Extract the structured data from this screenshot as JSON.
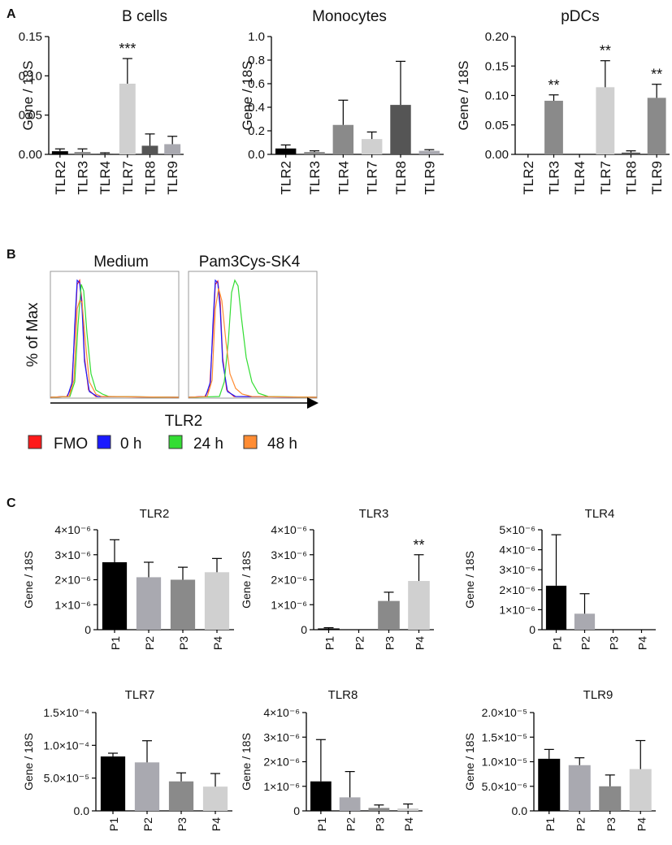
{
  "panel_labels": {
    "a": "A",
    "b": "B",
    "c": "C"
  },
  "colors": {
    "black": "#000000",
    "dark": "#555555",
    "mid": "#8a8a8a",
    "light_gray": "#a9a9b0",
    "pale": "#d0d0d0",
    "fmo": "#ff1a1a",
    "h0": "#1a1aff",
    "h24": "#33dd33",
    "h48": "#ff8c33"
  },
  "legend": [
    {
      "label": "FMO",
      "color": "#ff1a1a"
    },
    {
      "label": "0 h",
      "color": "#1a1aff"
    },
    {
      "label": "24 h",
      "color": "#33dd33"
    },
    {
      "label": "48 h",
      "color": "#ff8c33"
    }
  ],
  "flow": {
    "titles": [
      "Medium",
      "Pam3Cys-SK4"
    ],
    "ylabel": "% of Max",
    "xlabel": "TLR2"
  },
  "chart_data": [
    {
      "type": "bar",
      "panel": "A",
      "title": "B cells",
      "ylabel": "Gene / 18S",
      "categories": [
        "TLR2",
        "TLR3",
        "TLR4",
        "TLR7",
        "TLR8",
        "TLR9"
      ],
      "values": [
        0.004,
        0.003,
        0.001,
        0.09,
        0.011,
        0.013
      ],
      "errors": [
        0.003,
        0.004,
        0.001,
        0.032,
        0.015,
        0.01
      ],
      "colors": [
        "#000000",
        "#8a8a8a",
        "#555555",
        "#d0d0d0",
        "#555555",
        "#a9a9b0"
      ],
      "annotations": [
        "",
        "",
        "",
        "***",
        "",
        ""
      ],
      "ylim": [
        0,
        0.15
      ],
      "yticks": [
        0,
        0.05,
        0.1,
        0.15
      ],
      "ytick_labels": [
        "0.00",
        "0.05",
        "0.10",
        "0.15"
      ]
    },
    {
      "type": "bar",
      "panel": "A",
      "title": "Monocytes",
      "ylabel": "Gene / 18S",
      "categories": [
        "TLR2",
        "TLR3",
        "TLR4",
        "TLR7",
        "TLR8",
        "TLR9"
      ],
      "values": [
        0.05,
        0.02,
        0.25,
        0.13,
        0.42,
        0.03
      ],
      "errors": [
        0.03,
        0.01,
        0.21,
        0.06,
        0.37,
        0.01
      ],
      "colors": [
        "#000000",
        "#8a8a8a",
        "#8a8a8a",
        "#d0d0d0",
        "#555555",
        "#a9a9b0"
      ],
      "annotations": [
        "",
        "",
        "",
        "",
        "",
        ""
      ],
      "ylim": [
        0,
        1.0
      ],
      "yticks": [
        0,
        0.2,
        0.4,
        0.6,
        0.8,
        1.0
      ],
      "ytick_labels": [
        "0.0",
        "0.2",
        "0.4",
        "0.6",
        "0.8",
        "1.0"
      ]
    },
    {
      "type": "bar",
      "panel": "A",
      "title": "pDCs",
      "ylabel": "Gene / 18S",
      "categories": [
        "TLR2",
        "TLR3",
        "TLR4",
        "TLR7",
        "TLR8",
        "TLR9"
      ],
      "values": [
        0,
        0.091,
        0,
        0.114,
        0.003,
        0.096
      ],
      "errors": [
        0,
        0.01,
        0,
        0.045,
        0.003,
        0.023
      ],
      "colors": [
        "#000000",
        "#8a8a8a",
        "#555555",
        "#d0d0d0",
        "#555555",
        "#8a8a8a"
      ],
      "annotations": [
        "",
        "**",
        "",
        "**",
        "",
        "**"
      ],
      "ylim": [
        0,
        0.2
      ],
      "yticks": [
        0,
        0.05,
        0.1,
        0.15,
        0.2
      ],
      "ytick_labels": [
        "0.00",
        "0.05",
        "0.10",
        "0.15",
        "0.20"
      ]
    },
    {
      "type": "bar",
      "panel": "C",
      "title": "TLR2",
      "ylabel": "Gene / 18S",
      "categories": [
        "P1",
        "P2",
        "P3",
        "P4"
      ],
      "values": [
        2.7e-06,
        2.1e-06,
        2e-06,
        2.3e-06
      ],
      "errors": [
        9e-07,
        6e-07,
        5e-07,
        5.5e-07
      ],
      "colors": [
        "#000000",
        "#a9a9b0",
        "#8a8a8a",
        "#d0d0d0"
      ],
      "annotations": [
        "",
        "",
        "",
        ""
      ],
      "ylim": [
        0,
        4e-06
      ],
      "yticks": [
        0,
        1e-06,
        2e-06,
        3e-06,
        4e-06
      ],
      "ytick_labels": [
        "0",
        "1×10⁻⁶",
        "2×10⁻⁶",
        "3×10⁻⁶",
        "4×10⁻⁶"
      ]
    },
    {
      "type": "bar",
      "panel": "C",
      "title": "TLR3",
      "ylabel": "Gene / 18S",
      "categories": [
        "P1",
        "P2",
        "P3",
        "P4"
      ],
      "values": [
        5e-08,
        0,
        1.15e-06,
        1.95e-06
      ],
      "errors": [
        3e-08,
        0,
        3.5e-07,
        1.05e-06
      ],
      "colors": [
        "#000000",
        "#a9a9b0",
        "#8a8a8a",
        "#d0d0d0"
      ],
      "annotations": [
        "",
        "",
        "",
        "**"
      ],
      "ylim": [
        0,
        4e-06
      ],
      "yticks": [
        0,
        1e-06,
        2e-06,
        3e-06,
        4e-06
      ],
      "ytick_labels": [
        "0",
        "1×10⁻⁶",
        "2×10⁻⁶",
        "3×10⁻⁶",
        "4×10⁻⁶"
      ]
    },
    {
      "type": "bar",
      "panel": "C",
      "title": "TLR4",
      "ylabel": "Gene / 18S",
      "categories": [
        "P1",
        "P2",
        "P3",
        "P4"
      ],
      "values": [
        2.2e-06,
        8e-07,
        0,
        0
      ],
      "errors": [
        2.55e-06,
        1e-06,
        0,
        0
      ],
      "colors": [
        "#000000",
        "#a9a9b0",
        "#8a8a8a",
        "#d0d0d0"
      ],
      "annotations": [
        "",
        "",
        "",
        ""
      ],
      "ylim": [
        0,
        5e-06
      ],
      "yticks": [
        0,
        1e-06,
        2e-06,
        3e-06,
        4e-06,
        5e-06
      ],
      "ytick_labels": [
        "0",
        "1×10⁻⁶",
        "2×10⁻⁶",
        "3×10⁻⁶",
        "4×10⁻⁶",
        "5×10⁻⁶"
      ]
    },
    {
      "type": "bar",
      "panel": "C",
      "title": "TLR7",
      "ylabel": "Gene / 18S",
      "categories": [
        "P1",
        "P2",
        "P3",
        "P4"
      ],
      "values": [
        8.3e-05,
        7.4e-05,
        4.5e-05,
        3.7e-05
      ],
      "errors": [
        5e-06,
        3.3e-05,
        1.3e-05,
        2e-05
      ],
      "colors": [
        "#000000",
        "#a9a9b0",
        "#8a8a8a",
        "#d0d0d0"
      ],
      "annotations": [
        "",
        "",
        "",
        ""
      ],
      "ylim": [
        0,
        0.00015
      ],
      "yticks": [
        0,
        5e-05,
        0.0001,
        0.00015
      ],
      "ytick_labels": [
        "0.0",
        "5.0×10⁻⁵",
        "1.0×10⁻⁴",
        "1.5×10⁻⁴"
      ]
    },
    {
      "type": "bar",
      "panel": "C",
      "title": "TLR8",
      "ylabel": "Gene / 18S",
      "categories": [
        "P1",
        "P2",
        "P3",
        "P4"
      ],
      "values": [
        1.2e-06,
        5.5e-07,
        1.2e-07,
        1e-07
      ],
      "errors": [
        1.7e-06,
        1.05e-06,
        1.2e-07,
        1.8e-07
      ],
      "colors": [
        "#000000",
        "#a9a9b0",
        "#8a8a8a",
        "#d0d0d0"
      ],
      "annotations": [
        "",
        "",
        "",
        ""
      ],
      "ylim": [
        0,
        4e-06
      ],
      "yticks": [
        0,
        1e-06,
        2e-06,
        3e-06,
        4e-06
      ],
      "ytick_labels": [
        "0",
        "1×10⁻⁶",
        "2×10⁻⁶",
        "3×10⁻⁶",
        "4×10⁻⁶"
      ]
    },
    {
      "type": "bar",
      "panel": "C",
      "title": "TLR9",
      "ylabel": "Gene / 18S",
      "categories": [
        "P1",
        "P2",
        "P3",
        "P4"
      ],
      "values": [
        1.06e-05,
        9.3e-06,
        5e-06,
        8.5e-06
      ],
      "errors": [
        1.9e-06,
        1.5e-06,
        2.3e-06,
        5.8e-06
      ],
      "colors": [
        "#000000",
        "#a9a9b0",
        "#8a8a8a",
        "#d0d0d0"
      ],
      "annotations": [
        "",
        "",
        "",
        ""
      ],
      "ylim": [
        0,
        2e-05
      ],
      "yticks": [
        0,
        5e-06,
        1e-05,
        1.5e-05,
        2e-05
      ],
      "ytick_labels": [
        "0.0",
        "5.0×10⁻⁶",
        "1.0×10⁻⁵",
        "1.5×10⁻⁵",
        "2.0×10⁻⁵"
      ]
    }
  ]
}
